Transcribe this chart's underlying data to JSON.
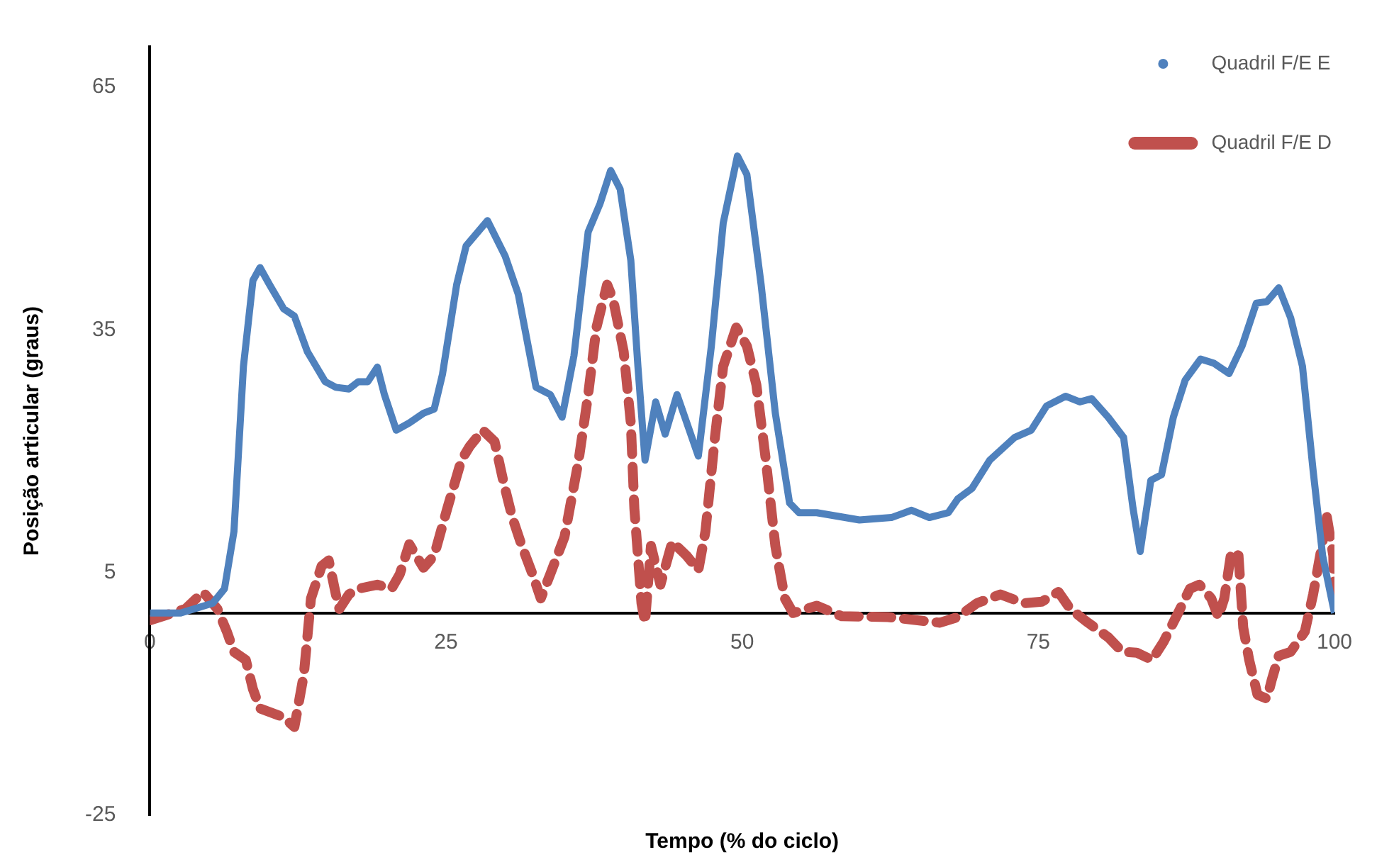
{
  "chart_data": {
    "type": "line",
    "xlabel": "Tempo (% do ciclo)",
    "ylabel": "Posição articular (graus)",
    "xlim": [
      0,
      100
    ],
    "xticks": [
      0,
      25,
      50,
      75,
      100
    ],
    "ylim": [
      -25,
      70
    ],
    "yticks": [
      -25,
      5,
      35,
      65
    ],
    "grid": false,
    "legend": "top right",
    "marker": "none",
    "series": [
      {
        "name": "Quadril F/E E",
        "color": "#4f81bd",
        "line_style": "solid",
        "x": [
          0,
          2.6,
          5.3,
          6.3,
          7.1,
          7.9,
          8.7,
          9.3,
          10.1,
          11.3,
          12.2,
          13.3,
          14.8,
          15.7,
          16.8,
          17.6,
          18.4,
          19.2,
          19.8,
          20.8,
          21.9,
          23.1,
          24.0,
          24.7,
          25.9,
          26.7,
          28.5,
          30.0,
          31.1,
          32.6,
          33.8,
          34.8,
          35.8,
          37.0,
          38.0,
          38.9,
          39.7,
          40.6,
          41.2,
          41.8,
          42.7,
          43.5,
          44.5,
          46.3,
          47.4,
          48.4,
          49.6,
          50.4,
          51.6,
          52.8,
          54.0,
          54.8,
          56.3,
          59.9,
          62.6,
          64.3,
          65.8,
          67.4,
          68.2,
          69.4,
          70.9,
          73.0,
          74.4,
          75.7,
          77.3,
          78.5,
          79.5,
          80.9,
          82.2,
          83.0,
          83.6,
          84.5,
          85.4,
          86.4,
          87.4,
          88.7,
          89.8,
          91.1,
          92.2,
          93.4,
          94.3,
          95.3,
          96.3,
          97.3,
          98.2,
          99.0,
          100
        ],
        "values": [
          0,
          0,
          1.2,
          3.0,
          10.1,
          30.5,
          41.1,
          42.7,
          40.6,
          37.6,
          36.7,
          32.3,
          28.6,
          27.9,
          27.7,
          28.6,
          28.6,
          30.4,
          27.0,
          22.6,
          23.5,
          24.7,
          25.2,
          29.5,
          40.6,
          45.4,
          48.5,
          44.1,
          39.4,
          27.9,
          27.0,
          24.2,
          31.8,
          47.1,
          50.6,
          54.7,
          52.4,
          43.6,
          30.5,
          18.9,
          26.1,
          22.1,
          27.0,
          19.4,
          33.0,
          48.2,
          56.5,
          54.2,
          40.6,
          24.7,
          13.6,
          12.4,
          12.4,
          11.5,
          11.8,
          12.7,
          11.8,
          12.4,
          14.1,
          15.4,
          18.9,
          21.7,
          22.6,
          25.6,
          26.8,
          26.1,
          26.5,
          24.2,
          21.7,
          12.9,
          7.6,
          16.4,
          17.1,
          24.2,
          28.8,
          31.4,
          30.9,
          29.6,
          33.0,
          38.3,
          38.5,
          40.2,
          36.5,
          30.5,
          17.6,
          7.1,
          0
        ]
      },
      {
        "name": "Quadril F/E D",
        "color": "#c0504d",
        "line_style": "dashed",
        "x": [
          0,
          3.0,
          4.5,
          5.7,
          6.5,
          7.1,
          8.1,
          8.7,
          9.3,
          11.3,
          12.2,
          13.0,
          13.6,
          14.5,
          15.1,
          15.7,
          16.0,
          16.8,
          17.6,
          19.2,
          20.4,
          21.1,
          21.9,
          23.1,
          24.0,
          25.1,
          26.3,
          27.0,
          28.1,
          29.1,
          29.9,
          30.6,
          31.4,
          32.3,
          33.0,
          33.8,
          35.0,
          36.2,
          37.0,
          37.7,
          38.6,
          39.1,
          40.0,
          40.6,
          40.9,
          41.2,
          41.5,
          41.8,
          42.3,
          43.1,
          44.1,
          45.3,
          46.3,
          46.9,
          47.7,
          48.4,
          49.5,
          50.4,
          51.2,
          52.0,
          52.8,
          53.6,
          54.3,
          56.3,
          58.4,
          62.3,
          66.7,
          68.2,
          69.8,
          71.8,
          73.8,
          75.3,
          76.7,
          77.7,
          79.2,
          80.9,
          82.1,
          83.3,
          84.6,
          85.6,
          86.8,
          87.8,
          88.6,
          89.6,
          90.2,
          90.7,
          91.3,
          91.9,
          92.3,
          92.8,
          93.5,
          94.3,
          94.7,
          95.3,
          96.3,
          97.5,
          98.2,
          99.0,
          99.3,
          99.9,
          100
        ],
        "values": [
          -0.9,
          0.5,
          2.6,
          0.5,
          -2.3,
          -4.8,
          -5.8,
          -9.4,
          -11.8,
          -12.9,
          -14.1,
          -7.6,
          1.8,
          5.8,
          6.5,
          2.3,
          0.5,
          2.3,
          3.0,
          3.5,
          3.0,
          4.8,
          8.5,
          5.6,
          7.1,
          12.9,
          18.9,
          20.6,
          22.6,
          21.2,
          15.9,
          11.8,
          8.3,
          4.8,
          1.8,
          4.8,
          9.4,
          18.9,
          27.0,
          35.3,
          40.6,
          38.8,
          32.3,
          23.5,
          12.9,
          7.1,
          1.2,
          -1.2,
          8.3,
          3.5,
          8.8,
          7.1,
          5.3,
          10.1,
          21.7,
          30.5,
          35.3,
          33.0,
          28.2,
          18.9,
          8.3,
          1.8,
          0,
          0.9,
          -0.4,
          -0.5,
          -1.2,
          -0.5,
          1.2,
          2.3,
          1.2,
          1.4,
          2.6,
          0.5,
          -1.2,
          -3.0,
          -4.8,
          -4.9,
          -5.8,
          -3.5,
          0,
          3.0,
          3.5,
          1.8,
          -0.5,
          1.8,
          7.6,
          7.1,
          -1.8,
          -5.8,
          -10.1,
          -10.6,
          -8.3,
          -5.3,
          -4.8,
          -2.3,
          2.3,
          8.8,
          12.4,
          7.1,
          0
        ]
      }
    ]
  }
}
